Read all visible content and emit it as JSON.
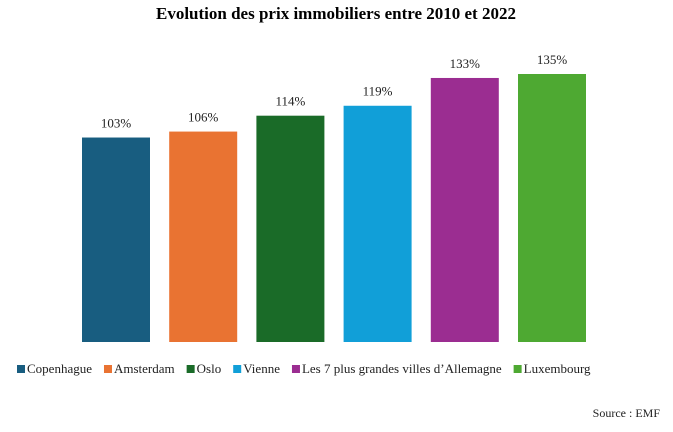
{
  "chart_data": {
    "type": "bar",
    "title": "Evolution des prix immobiliers entre 2010 et 2022",
    "categories": [
      "Copenhague",
      "Amsterdam",
      "Oslo",
      "Vienne",
      "Les 7 plus grandes villes d’Allemagne",
      "Luxembourg"
    ],
    "values": [
      103,
      106,
      114,
      119,
      133,
      135
    ],
    "value_labels": [
      "103%",
      "106%",
      "114%",
      "119%",
      "133%",
      "135%"
    ],
    "colors": [
      "#185d80",
      "#e97332",
      "#1a6b28",
      "#119fd8",
      "#9b2d91",
      "#4ea932"
    ],
    "source": "Source : EMF"
  }
}
